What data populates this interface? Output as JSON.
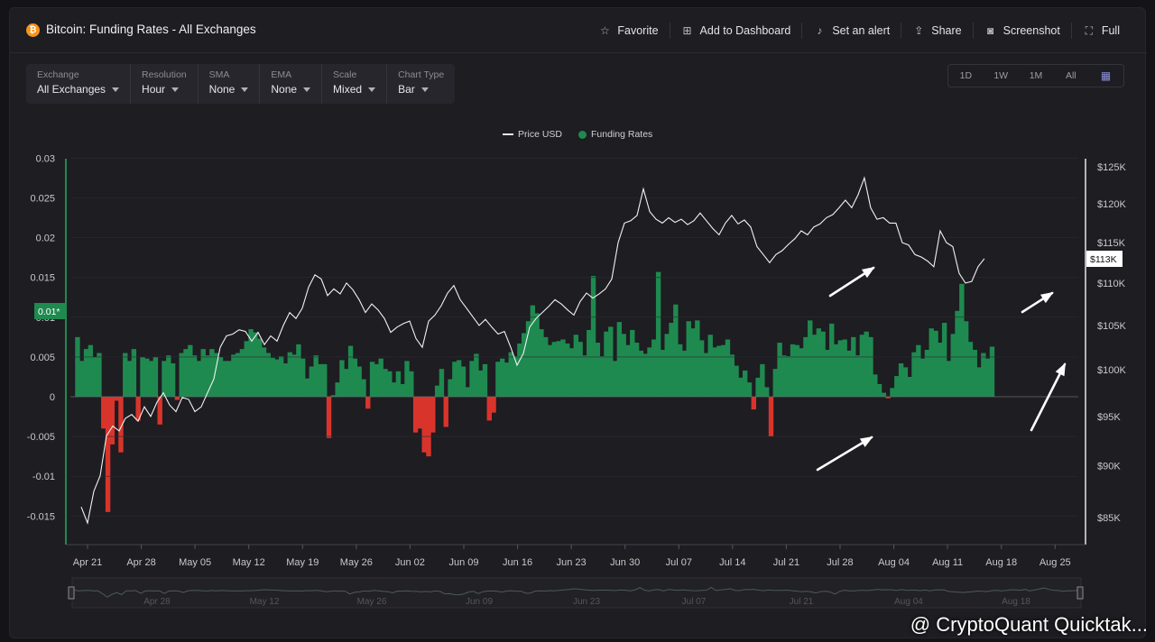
{
  "header": {
    "title": "Bitcoin: Funding Rates - All Exchanges",
    "actions": [
      {
        "label": "Favorite",
        "icon": "star-icon"
      },
      {
        "label": "Add to Dashboard",
        "icon": "dashboard-add-icon"
      },
      {
        "label": "Set an alert",
        "icon": "bell-icon"
      },
      {
        "label": "Share",
        "icon": "share-icon"
      },
      {
        "label": "Screenshot",
        "icon": "camera-icon"
      },
      {
        "label": "Full",
        "icon": "fullscreen-icon"
      }
    ]
  },
  "filters": [
    {
      "label": "Exchange",
      "value": "All Exchanges"
    },
    {
      "label": "Resolution",
      "value": "Hour"
    },
    {
      "label": "SMA",
      "value": "None"
    },
    {
      "label": "EMA",
      "value": "None"
    },
    {
      "label": "Scale",
      "value": "Mixed"
    },
    {
      "label": "Chart Type",
      "value": "Bar"
    }
  ],
  "ranges": [
    "1D",
    "1W",
    "1M",
    "All"
  ],
  "watermark": "@ CryptoQuant Quicktak...",
  "colors": {
    "positive": "#1f8a4f",
    "negative": "#d9342b",
    "price": "#f2f2f4",
    "accent": "#1f8a4f"
  },
  "chart_data": {
    "type": "bar",
    "legend": [
      "Price USD",
      "Funding Rates"
    ],
    "legend_position": "top-center",
    "x_ticks": [
      "Apr 21",
      "Apr 28",
      "May 05",
      "May 12",
      "May 19",
      "May 26",
      "Jun 02",
      "Jun 09",
      "Jun 16",
      "Jun 23",
      "Jun 30",
      "Jul 07",
      "Jul 14",
      "Jul 21",
      "Jul 28",
      "Aug 04",
      "Aug 11",
      "Aug 18",
      "Aug 25"
    ],
    "navigator_ticks": [
      "Apr 28",
      "May 12",
      "May 26",
      "Jun 09",
      "Jun 23",
      "Jul 07",
      "Jul 21",
      "Aug 04",
      "Aug 18"
    ],
    "y_left": {
      "ticks": [
        "0.03",
        "0.025",
        "0.02",
        "0.015",
        "0.01",
        "0.005",
        "0",
        "-0.005",
        "-0.01",
        "-0.015"
      ],
      "range": [
        -0.0185,
        0.03
      ],
      "current_label": "0.01*"
    },
    "y_right": {
      "ticks": [
        "$125K",
        "$120K",
        "$115K",
        "$110K",
        "$105K",
        "$100K",
        "$95K",
        "$90K",
        "$85K"
      ],
      "current_label": "$113K"
    },
    "funding_series": {
      "name": "Funding Rates",
      "x_day_range": [
        -1.3,
        117.8
      ],
      "values": [
        0.0075,
        0.0045,
        0.006,
        0.0065,
        0.005,
        0.0055,
        -0.004,
        -0.0145,
        -0.006,
        -0.0005,
        -0.007,
        0.0055,
        0.0045,
        0.006,
        -0.003,
        0.005,
        0.0048,
        0.0045,
        0.005,
        -0.0035,
        0.0045,
        0.0052,
        0.0042,
        -0.0004,
        0.0055,
        0.006,
        0.0065,
        0.0052,
        0.0045,
        0.006,
        0.0052,
        0.006,
        0.0055,
        0.005,
        0.0045,
        0.0045,
        0.0053,
        0.0055,
        0.006,
        0.007,
        0.0085,
        0.0081,
        0.0073,
        0.0062,
        0.0055,
        0.0049,
        0.0047,
        0.0051,
        0.0042,
        0.0056,
        0.0053,
        0.0066,
        0.0048,
        0.0023,
        0.0038,
        0.0052,
        0.0041,
        0.0041,
        -0.0052,
        0.0002,
        0.0018,
        0.0046,
        0.0035,
        0.0064,
        0.0048,
        0.0038,
        0.0022,
        -0.0015,
        0.0044,
        0.0041,
        0.0048,
        0.0035,
        0.0032,
        0.0018,
        0.0032,
        0.0016,
        0.0045,
        0.0032,
        -0.0045,
        -0.004,
        -0.007,
        -0.0075,
        -0.0045,
        0.0014,
        0.0035,
        -0.0038,
        0.0022,
        0.0044,
        0.0046,
        0.0038,
        0.0012,
        0.0045,
        0.0054,
        0.0033,
        0.0041,
        -0.003,
        -0.002,
        0.0044,
        0.0048,
        0.0043,
        0.0056,
        0.0051,
        0.0067,
        0.008,
        0.0095,
        0.0115,
        0.0105,
        0.0085,
        0.0075,
        0.0065,
        0.0069,
        0.007,
        0.0072,
        0.0067,
        0.0061,
        0.0078,
        0.0069,
        0.0052,
        0.0084,
        0.0152,
        0.0068,
        0.0051,
        0.0082,
        0.0088,
        0.0045,
        0.0094,
        0.0079,
        0.0065,
        0.0084,
        0.0068,
        0.0058,
        0.0054,
        0.0062,
        0.0072,
        0.0157,
        0.0059,
        0.0079,
        0.0093,
        0.0116,
        0.0066,
        0.0058,
        0.0095,
        0.0086,
        0.0096,
        0.0071,
        0.0055,
        0.0078,
        0.0062,
        0.0064,
        0.0065,
        0.0072,
        0.0053,
        0.0039,
        0.0024,
        0.0033,
        0.0018,
        -0.0016,
        0.0024,
        0.0041,
        0.0012,
        -0.005,
        0.0035,
        0.0068,
        0.0052,
        0.0051,
        0.0066,
        0.0065,
        0.0061,
        0.0075,
        0.0096,
        0.0078,
        0.0086,
        0.0082,
        0.0059,
        0.0092,
        0.0066,
        0.0071,
        0.0072,
        0.0058,
        0.0075,
        0.0052,
        0.0078,
        0.0082,
        0.0075,
        0.0028,
        0.0016,
        0.0005,
        -0.0002,
        0.0011,
        0.0026,
        0.0042,
        0.0037,
        0.0025,
        0.0056,
        0.0065,
        0.0048,
        0.0059,
        0.0086,
        0.0083,
        0.0068,
        0.0093,
        0.0045,
        0.0079,
        0.0108,
        0.0142,
        0.0095,
        0.0069,
        0.0059,
        0.0037,
        0.0055,
        0.0048,
        0.0063
      ]
    },
    "price_series": {
      "name": "Price USD",
      "points": [
        [
          -1,
          86000
        ],
        [
          0,
          84500
        ],
        [
          1,
          87500
        ],
        [
          2,
          89000
        ],
        [
          3,
          93000
        ],
        [
          4,
          94000
        ],
        [
          5,
          93500
        ],
        [
          6,
          94800
        ],
        [
          7,
          95200
        ],
        [
          8,
          94500
        ],
        [
          9,
          96000
        ],
        [
          10,
          95000
        ],
        [
          11,
          96500
        ],
        [
          12,
          97500
        ],
        [
          13,
          96200
        ],
        [
          14,
          95500
        ],
        [
          15,
          97000
        ],
        [
          16,
          96800
        ],
        [
          17,
          95500
        ],
        [
          18,
          96000
        ],
        [
          19,
          97500
        ],
        [
          20,
          99000
        ],
        [
          21,
          102500
        ],
        [
          22,
          103800
        ],
        [
          23,
          104000
        ],
        [
          24,
          104500
        ],
        [
          25,
          104300
        ],
        [
          26,
          103200
        ],
        [
          27,
          104200
        ],
        [
          28,
          102800
        ],
        [
          29,
          103800
        ],
        [
          30,
          103200
        ],
        [
          31,
          105000
        ],
        [
          32,
          106500
        ],
        [
          33,
          105800
        ],
        [
          34,
          107000
        ],
        [
          35,
          109500
        ],
        [
          36,
          111000
        ],
        [
          37,
          110500
        ],
        [
          38,
          108500
        ],
        [
          39,
          109300
        ],
        [
          40,
          108700
        ],
        [
          41,
          110000
        ],
        [
          42,
          109200
        ],
        [
          43,
          108000
        ],
        [
          44,
          106500
        ],
        [
          45,
          107500
        ],
        [
          46,
          106800
        ],
        [
          47,
          105800
        ],
        [
          48,
          104200
        ],
        [
          49,
          104800
        ],
        [
          50,
          105200
        ],
        [
          51,
          105500
        ],
        [
          52,
          103500
        ],
        [
          53,
          102500
        ],
        [
          54,
          105500
        ],
        [
          55,
          106200
        ],
        [
          56,
          107300
        ],
        [
          57,
          108800
        ],
        [
          58,
          109700
        ],
        [
          59,
          108000
        ],
        [
          60,
          107000
        ],
        [
          61,
          106000
        ],
        [
          62,
          105000
        ],
        [
          63,
          105700
        ],
        [
          64,
          104800
        ],
        [
          65,
          104000
        ],
        [
          66,
          104300
        ],
        [
          67,
          102500
        ],
        [
          68,
          100500
        ],
        [
          69,
          101800
        ],
        [
          70,
          104800
        ],
        [
          71,
          105800
        ],
        [
          72,
          106500
        ],
        [
          73,
          107200
        ],
        [
          74,
          108000
        ],
        [
          75,
          107500
        ],
        [
          76,
          106800
        ],
        [
          77,
          106200
        ],
        [
          78,
          107800
        ],
        [
          79,
          108800
        ],
        [
          80,
          108200
        ],
        [
          81,
          108700
        ],
        [
          82,
          109300
        ],
        [
          83,
          110500
        ],
        [
          84,
          115000
        ],
        [
          85,
          117500
        ],
        [
          86,
          117800
        ],
        [
          87,
          118500
        ],
        [
          88,
          122000
        ],
        [
          89,
          119000
        ],
        [
          90,
          118000
        ],
        [
          91,
          117500
        ],
        [
          92,
          118200
        ],
        [
          93,
          117600
        ],
        [
          94,
          118000
        ],
        [
          95,
          117300
        ],
        [
          96,
          117800
        ],
        [
          97,
          118800
        ],
        [
          98,
          117800
        ],
        [
          99,
          116800
        ],
        [
          100,
          116000
        ],
        [
          101,
          117500
        ],
        [
          102,
          118500
        ],
        [
          103,
          117400
        ],
        [
          104,
          117900
        ],
        [
          105,
          117000
        ],
        [
          106,
          114500
        ],
        [
          107,
          113500
        ],
        [
          108,
          112500
        ],
        [
          109,
          113500
        ],
        [
          110,
          114000
        ],
        [
          111,
          114800
        ],
        [
          112,
          115500
        ],
        [
          113,
          116500
        ],
        [
          114,
          116000
        ],
        [
          115,
          117000
        ],
        [
          116,
          117400
        ],
        [
          117,
          118200
        ],
        [
          118,
          118600
        ],
        [
          119,
          119500
        ],
        [
          120,
          120500
        ],
        [
          121,
          119500
        ],
        [
          122,
          121200
        ],
        [
          123,
          123500
        ],
        [
          124,
          119500
        ],
        [
          125,
          118000
        ],
        [
          126,
          118200
        ],
        [
          127,
          117500
        ],
        [
          128,
          117500
        ],
        [
          129,
          115000
        ],
        [
          130,
          114700
        ],
        [
          131,
          113500
        ],
        [
          132,
          113200
        ],
        [
          133,
          112700
        ],
        [
          134,
          112000
        ],
        [
          135,
          116500
        ],
        [
          136,
          115000
        ],
        [
          137,
          114500
        ],
        [
          138,
          111200
        ],
        [
          139,
          110000
        ],
        [
          140,
          110200
        ],
        [
          141,
          112000
        ],
        [
          142,
          113000
        ]
      ]
    },
    "annotations": [
      {
        "type": "arrow",
        "at": "Jul 31",
        "on": "Price USD"
      },
      {
        "type": "arrow",
        "at": "Aug 02",
        "on": "Funding Rates"
      },
      {
        "type": "arrow",
        "at": "Aug 24",
        "on": "Price USD"
      },
      {
        "type": "arrow",
        "at": "Aug 26",
        "on": "Funding Rates"
      }
    ]
  }
}
